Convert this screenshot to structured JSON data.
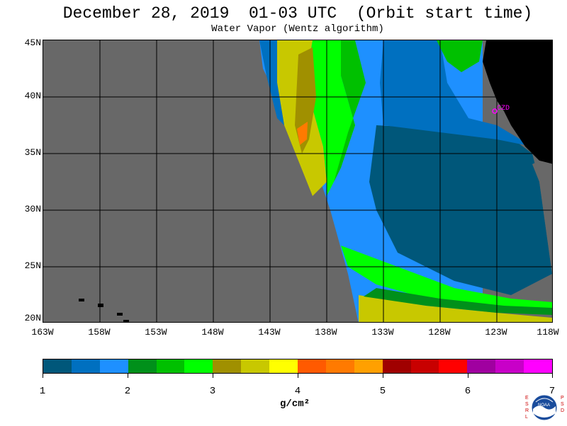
{
  "title": "December 28, 2019  01-03 UTC  (Orbit start time)",
  "subtitle": "Water Vapor (Wentz algorithm)",
  "map": {
    "lat_labels": [
      "45N",
      "40N",
      "35N",
      "30N",
      "25N",
      "20N"
    ],
    "lon_labels": [
      "163W",
      "158W",
      "153W",
      "148W",
      "143W",
      "138W",
      "133W",
      "128W",
      "123W",
      "118W"
    ],
    "station_label": "CZD",
    "colors": {
      "no_data": "#686868",
      "land": "#000000",
      "station": "#ff00ff"
    }
  },
  "colorbar": {
    "unit": "g/cm²",
    "tick_labels": [
      "1",
      "2",
      "3",
      "4",
      "5",
      "6",
      "7"
    ],
    "colors": [
      "#00577a",
      "#0070c0",
      "#1e90ff",
      "#00901a",
      "#00c000",
      "#00ff00",
      "#a09000",
      "#c8c800",
      "#ffff00",
      "#ff5a00",
      "#ff7a00",
      "#ffa000",
      "#a00000",
      "#c80000",
      "#ff0000",
      "#a000a0",
      "#c800c8",
      "#ff00ff"
    ]
  },
  "logo": {
    "left_letters": "ESRL",
    "right_letters": "PSD",
    "name": "NOAA"
  }
}
